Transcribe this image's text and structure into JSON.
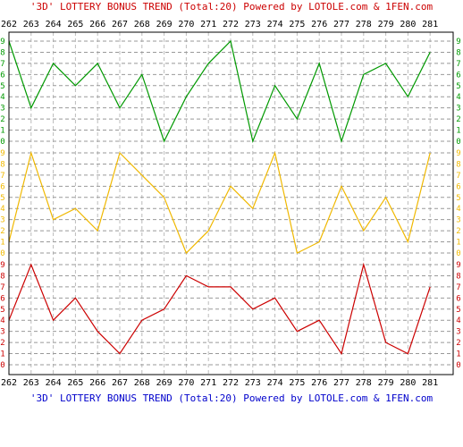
{
  "chart_data": {
    "type": "line",
    "title_top": "'3D' LOTTERY BONUS TREND (Total:20)  Powered by LOTOLE.com & 1FEN.com",
    "title_bottom": "'3D' LOTTERY BONUS TREND (Total:20)  Powered by LOTOLE.com & 1FEN.com",
    "x": [
      262,
      263,
      264,
      265,
      266,
      267,
      268,
      269,
      270,
      271,
      272,
      273,
      274,
      275,
      276,
      277,
      278,
      279,
      280,
      281
    ],
    "y_ticks": [
      0,
      1,
      2,
      3,
      4,
      5,
      6,
      7,
      8,
      9
    ],
    "ylim": [
      0,
      9
    ],
    "grid": true,
    "series": [
      {
        "color": "#009900",
        "values": [
          9,
          3,
          7,
          5,
          7,
          3,
          6,
          0,
          4,
          7,
          9,
          0,
          5,
          2,
          7,
          0,
          6,
          7,
          4,
          8
        ]
      },
      {
        "color": "#f0b800",
        "values": [
          1,
          9,
          3,
          4,
          2,
          9,
          7,
          5,
          0,
          2,
          6,
          4,
          9,
          0,
          1,
          6,
          2,
          5,
          1,
          9
        ]
      },
      {
        "color": "#cc0000",
        "values": [
          4,
          9,
          4,
          6,
          3,
          1,
          4,
          5,
          8,
          7,
          7,
          5,
          6,
          3,
          4,
          1,
          9,
          2,
          1,
          7
        ]
      }
    ]
  }
}
